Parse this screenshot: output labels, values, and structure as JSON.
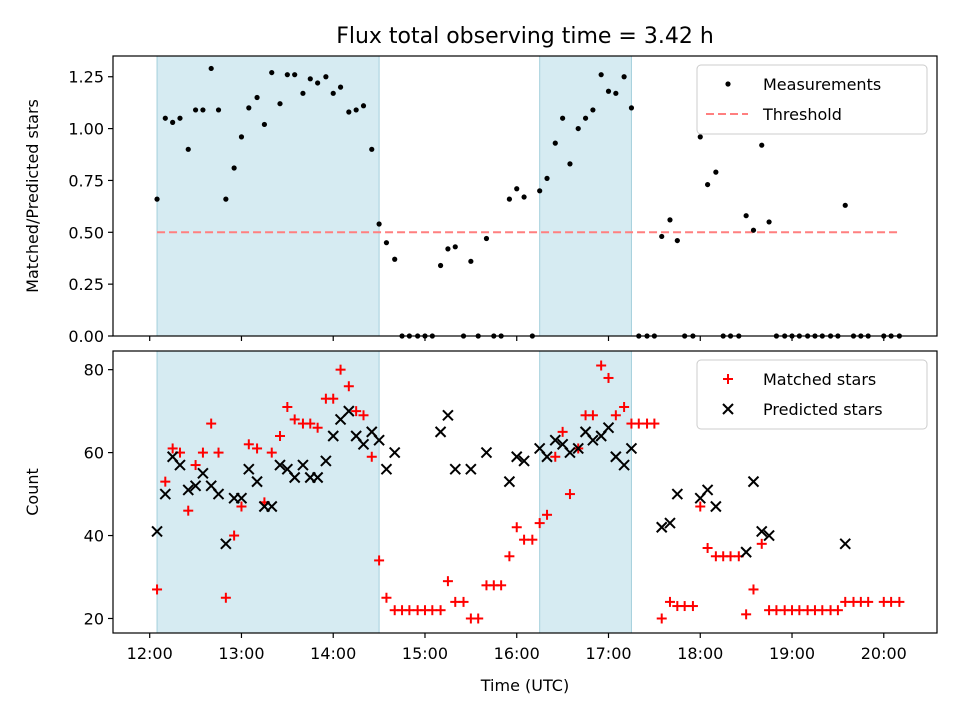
{
  "chart_data": [
    {
      "type": "scatter",
      "title": "Flux total observing time = 3.42 h",
      "xlabel": "",
      "ylabel": "Matched/Predicted stars",
      "x_unit": "hours UTC",
      "xlim": [
        11.6,
        20.58
      ],
      "ylim": [
        0.0,
        1.35
      ],
      "yticks": [
        "0.00",
        "0.25",
        "0.50",
        "0.75",
        "1.00",
        "1.25"
      ],
      "shaded_intervals": [
        [
          12.08,
          14.5
        ],
        [
          16.25,
          17.25
        ]
      ],
      "threshold": {
        "name": "Threshold",
        "value": 0.5,
        "x_range": [
          12.08,
          20.17
        ],
        "color": "#ff7f7f"
      },
      "legend_position": "top-right",
      "series": [
        {
          "name": "Measurements",
          "color": "#000000",
          "points": [
            [
              12.08,
              0.66
            ],
            [
              12.17,
              1.05
            ],
            [
              12.25,
              1.03
            ],
            [
              12.33,
              1.05
            ],
            [
              12.42,
              0.9
            ],
            [
              12.5,
              1.09
            ],
            [
              12.58,
              1.09
            ],
            [
              12.67,
              1.29
            ],
            [
              12.75,
              1.09
            ],
            [
              12.83,
              0.66
            ],
            [
              12.92,
              0.81
            ],
            [
              13.0,
              0.96
            ],
            [
              13.08,
              1.1
            ],
            [
              13.17,
              1.15
            ],
            [
              13.25,
              1.02
            ],
            [
              13.33,
              1.27
            ],
            [
              13.42,
              1.12
            ],
            [
              13.5,
              1.26
            ],
            [
              13.58,
              1.26
            ],
            [
              13.67,
              1.17
            ],
            [
              13.75,
              1.24
            ],
            [
              13.83,
              1.22
            ],
            [
              13.92,
              1.25
            ],
            [
              14.0,
              1.17
            ],
            [
              14.08,
              1.2
            ],
            [
              14.17,
              1.08
            ],
            [
              14.25,
              1.09
            ],
            [
              14.33,
              1.11
            ],
            [
              14.42,
              0.9
            ],
            [
              14.5,
              0.54
            ],
            [
              14.58,
              0.45
            ],
            [
              14.67,
              0.37
            ],
            [
              14.75,
              0.0
            ],
            [
              14.83,
              0.0
            ],
            [
              14.92,
              0.0
            ],
            [
              15.0,
              0.0
            ],
            [
              15.08,
              0.0
            ],
            [
              15.17,
              0.34
            ],
            [
              15.25,
              0.42
            ],
            [
              15.33,
              0.43
            ],
            [
              15.42,
              0.0
            ],
            [
              15.5,
              0.36
            ],
            [
              15.58,
              0.0
            ],
            [
              15.67,
              0.47
            ],
            [
              15.75,
              0.0
            ],
            [
              15.83,
              0.0
            ],
            [
              15.92,
              0.66
            ],
            [
              16.0,
              0.71
            ],
            [
              16.08,
              0.67
            ],
            [
              16.17,
              0.0
            ],
            [
              16.25,
              0.7
            ],
            [
              16.33,
              0.76
            ],
            [
              16.42,
              0.93
            ],
            [
              16.5,
              1.05
            ],
            [
              16.58,
              0.83
            ],
            [
              16.67,
              1.0
            ],
            [
              16.75,
              1.05
            ],
            [
              16.83,
              1.09
            ],
            [
              16.92,
              1.26
            ],
            [
              17.0,
              1.18
            ],
            [
              17.08,
              1.17
            ],
            [
              17.17,
              1.25
            ],
            [
              17.25,
              1.1
            ],
            [
              17.33,
              0.0
            ],
            [
              17.42,
              0.0
            ],
            [
              17.5,
              0.0
            ],
            [
              17.58,
              0.48
            ],
            [
              17.67,
              0.56
            ],
            [
              17.75,
              0.46
            ],
            [
              17.83,
              0.0
            ],
            [
              17.92,
              0.0
            ],
            [
              18.0,
              0.96
            ],
            [
              18.08,
              0.73
            ],
            [
              18.17,
              0.79
            ],
            [
              18.25,
              0.0
            ],
            [
              18.33,
              0.0
            ],
            [
              18.42,
              0.0
            ],
            [
              18.5,
              0.58
            ],
            [
              18.58,
              0.51
            ],
            [
              18.67,
              0.92
            ],
            [
              18.75,
              0.55
            ],
            [
              18.83,
              0.0
            ],
            [
              18.92,
              0.0
            ],
            [
              19.0,
              0.0
            ],
            [
              19.08,
              0.0
            ],
            [
              19.17,
              0.0
            ],
            [
              19.25,
              0.0
            ],
            [
              19.33,
              0.0
            ],
            [
              19.42,
              0.0
            ],
            [
              19.5,
              0.0
            ],
            [
              19.58,
              0.63
            ],
            [
              19.67,
              0.0
            ],
            [
              19.75,
              0.0
            ],
            [
              19.83,
              0.0
            ],
            [
              20.0,
              0.0
            ],
            [
              20.08,
              0.0
            ],
            [
              20.17,
              0.0
            ]
          ]
        }
      ]
    },
    {
      "type": "scatter",
      "title": "",
      "xlabel": "Time (UTC)",
      "ylabel": "Count",
      "x_unit": "hours UTC",
      "xlim": [
        11.6,
        20.58
      ],
      "ylim": [
        16.5,
        84.5
      ],
      "xticks": [
        "12:00",
        "13:00",
        "14:00",
        "15:00",
        "16:00",
        "17:00",
        "18:00",
        "19:00",
        "20:00"
      ],
      "yticks": [
        "20",
        "40",
        "60",
        "80"
      ],
      "shaded_intervals": [
        [
          12.08,
          14.5
        ],
        [
          16.25,
          17.25
        ]
      ],
      "legend_position": "top-right",
      "series": [
        {
          "name": "Matched stars",
          "marker": "+",
          "color": "#ff0000",
          "points": [
            [
              12.08,
              27
            ],
            [
              12.17,
              53
            ],
            [
              12.25,
              61
            ],
            [
              12.33,
              60
            ],
            [
              12.42,
              46
            ],
            [
              12.5,
              57
            ],
            [
              12.58,
              60
            ],
            [
              12.67,
              67
            ],
            [
              12.75,
              60
            ],
            [
              12.83,
              25
            ],
            [
              12.92,
              40
            ],
            [
              13.0,
              47
            ],
            [
              13.08,
              62
            ],
            [
              13.17,
              61
            ],
            [
              13.25,
              48
            ],
            [
              13.33,
              60
            ],
            [
              13.42,
              64
            ],
            [
              13.5,
              71
            ],
            [
              13.58,
              68
            ],
            [
              13.67,
              67
            ],
            [
              13.75,
              67
            ],
            [
              13.83,
              66
            ],
            [
              13.92,
              73
            ],
            [
              14.0,
              73
            ],
            [
              14.08,
              80
            ],
            [
              14.17,
              76
            ],
            [
              14.25,
              70
            ],
            [
              14.33,
              69
            ],
            [
              14.42,
              59
            ],
            [
              14.5,
              34
            ],
            [
              14.58,
              25
            ],
            [
              14.67,
              22
            ],
            [
              14.75,
              22
            ],
            [
              14.83,
              22
            ],
            [
              14.92,
              22
            ],
            [
              15.0,
              22
            ],
            [
              15.08,
              22
            ],
            [
              15.17,
              22
            ],
            [
              15.25,
              29
            ],
            [
              15.33,
              24
            ],
            [
              15.42,
              24
            ],
            [
              15.5,
              20
            ],
            [
              15.58,
              20
            ],
            [
              15.67,
              28
            ],
            [
              15.75,
              28
            ],
            [
              15.83,
              28
            ],
            [
              15.92,
              35
            ],
            [
              16.0,
              42
            ],
            [
              16.08,
              39
            ],
            [
              16.17,
              39
            ],
            [
              16.25,
              43
            ],
            [
              16.33,
              45
            ],
            [
              16.42,
              59
            ],
            [
              16.5,
              65
            ],
            [
              16.58,
              50
            ],
            [
              16.67,
              61
            ],
            [
              16.75,
              69
            ],
            [
              16.83,
              69
            ],
            [
              16.92,
              81
            ],
            [
              17.0,
              78
            ],
            [
              17.08,
              69
            ],
            [
              17.17,
              71
            ],
            [
              17.25,
              67
            ],
            [
              17.33,
              67
            ],
            [
              17.42,
              67
            ],
            [
              17.5,
              67
            ],
            [
              17.58,
              20
            ],
            [
              17.67,
              24
            ],
            [
              17.75,
              23
            ],
            [
              17.83,
              23
            ],
            [
              17.92,
              23
            ],
            [
              18.0,
              47
            ],
            [
              18.08,
              37
            ],
            [
              18.17,
              35
            ],
            [
              18.25,
              35
            ],
            [
              18.33,
              35
            ],
            [
              18.42,
              35
            ],
            [
              18.5,
              21
            ],
            [
              18.58,
              27
            ],
            [
              18.67,
              38
            ],
            [
              18.75,
              22
            ],
            [
              18.83,
              22
            ],
            [
              18.92,
              22
            ],
            [
              19.0,
              22
            ],
            [
              19.08,
              22
            ],
            [
              19.17,
              22
            ],
            [
              19.25,
              22
            ],
            [
              19.33,
              22
            ],
            [
              19.42,
              22
            ],
            [
              19.5,
              22
            ],
            [
              19.58,
              24
            ],
            [
              19.67,
              24
            ],
            [
              19.75,
              24
            ],
            [
              19.83,
              24
            ],
            [
              20.0,
              24
            ],
            [
              20.08,
              24
            ],
            [
              20.17,
              24
            ]
          ]
        },
        {
          "name": "Predicted stars",
          "marker": "x",
          "color": "#000000",
          "points": [
            [
              12.08,
              41
            ],
            [
              12.17,
              50
            ],
            [
              12.25,
              59
            ],
            [
              12.33,
              57
            ],
            [
              12.42,
              51
            ],
            [
              12.5,
              52
            ],
            [
              12.58,
              55
            ],
            [
              12.67,
              52
            ],
            [
              12.75,
              50
            ],
            [
              12.83,
              38
            ],
            [
              12.92,
              49
            ],
            [
              13.0,
              49
            ],
            [
              13.08,
              56
            ],
            [
              13.17,
              53
            ],
            [
              13.25,
              47
            ],
            [
              13.33,
              47
            ],
            [
              13.42,
              57
            ],
            [
              13.5,
              56
            ],
            [
              13.58,
              54
            ],
            [
              13.67,
              57
            ],
            [
              13.75,
              54
            ],
            [
              13.83,
              54
            ],
            [
              13.92,
              58
            ],
            [
              14.0,
              64
            ],
            [
              14.08,
              68
            ],
            [
              14.17,
              70
            ],
            [
              14.25,
              64
            ],
            [
              14.33,
              62
            ],
            [
              14.42,
              65
            ],
            [
              14.5,
              63
            ],
            [
              14.58,
              56
            ],
            [
              14.67,
              60
            ],
            [
              15.17,
              65
            ],
            [
              15.25,
              69
            ],
            [
              15.33,
              56
            ],
            [
              15.5,
              56
            ],
            [
              15.67,
              60
            ],
            [
              15.92,
              53
            ],
            [
              16.0,
              59
            ],
            [
              16.08,
              58
            ],
            [
              16.25,
              61
            ],
            [
              16.33,
              59
            ],
            [
              16.42,
              63
            ],
            [
              16.5,
              62
            ],
            [
              16.58,
              60
            ],
            [
              16.67,
              61
            ],
            [
              16.75,
              65
            ],
            [
              16.83,
              63
            ],
            [
              16.92,
              64
            ],
            [
              17.0,
              66
            ],
            [
              17.08,
              59
            ],
            [
              17.17,
              57
            ],
            [
              17.25,
              61
            ],
            [
              17.58,
              42
            ],
            [
              17.67,
              43
            ],
            [
              17.75,
              50
            ],
            [
              18.0,
              49
            ],
            [
              18.08,
              51
            ],
            [
              18.17,
              47
            ],
            [
              18.5,
              36
            ],
            [
              18.58,
              53
            ],
            [
              18.67,
              41
            ],
            [
              18.75,
              40
            ],
            [
              19.58,
              38
            ]
          ]
        }
      ]
    }
  ]
}
